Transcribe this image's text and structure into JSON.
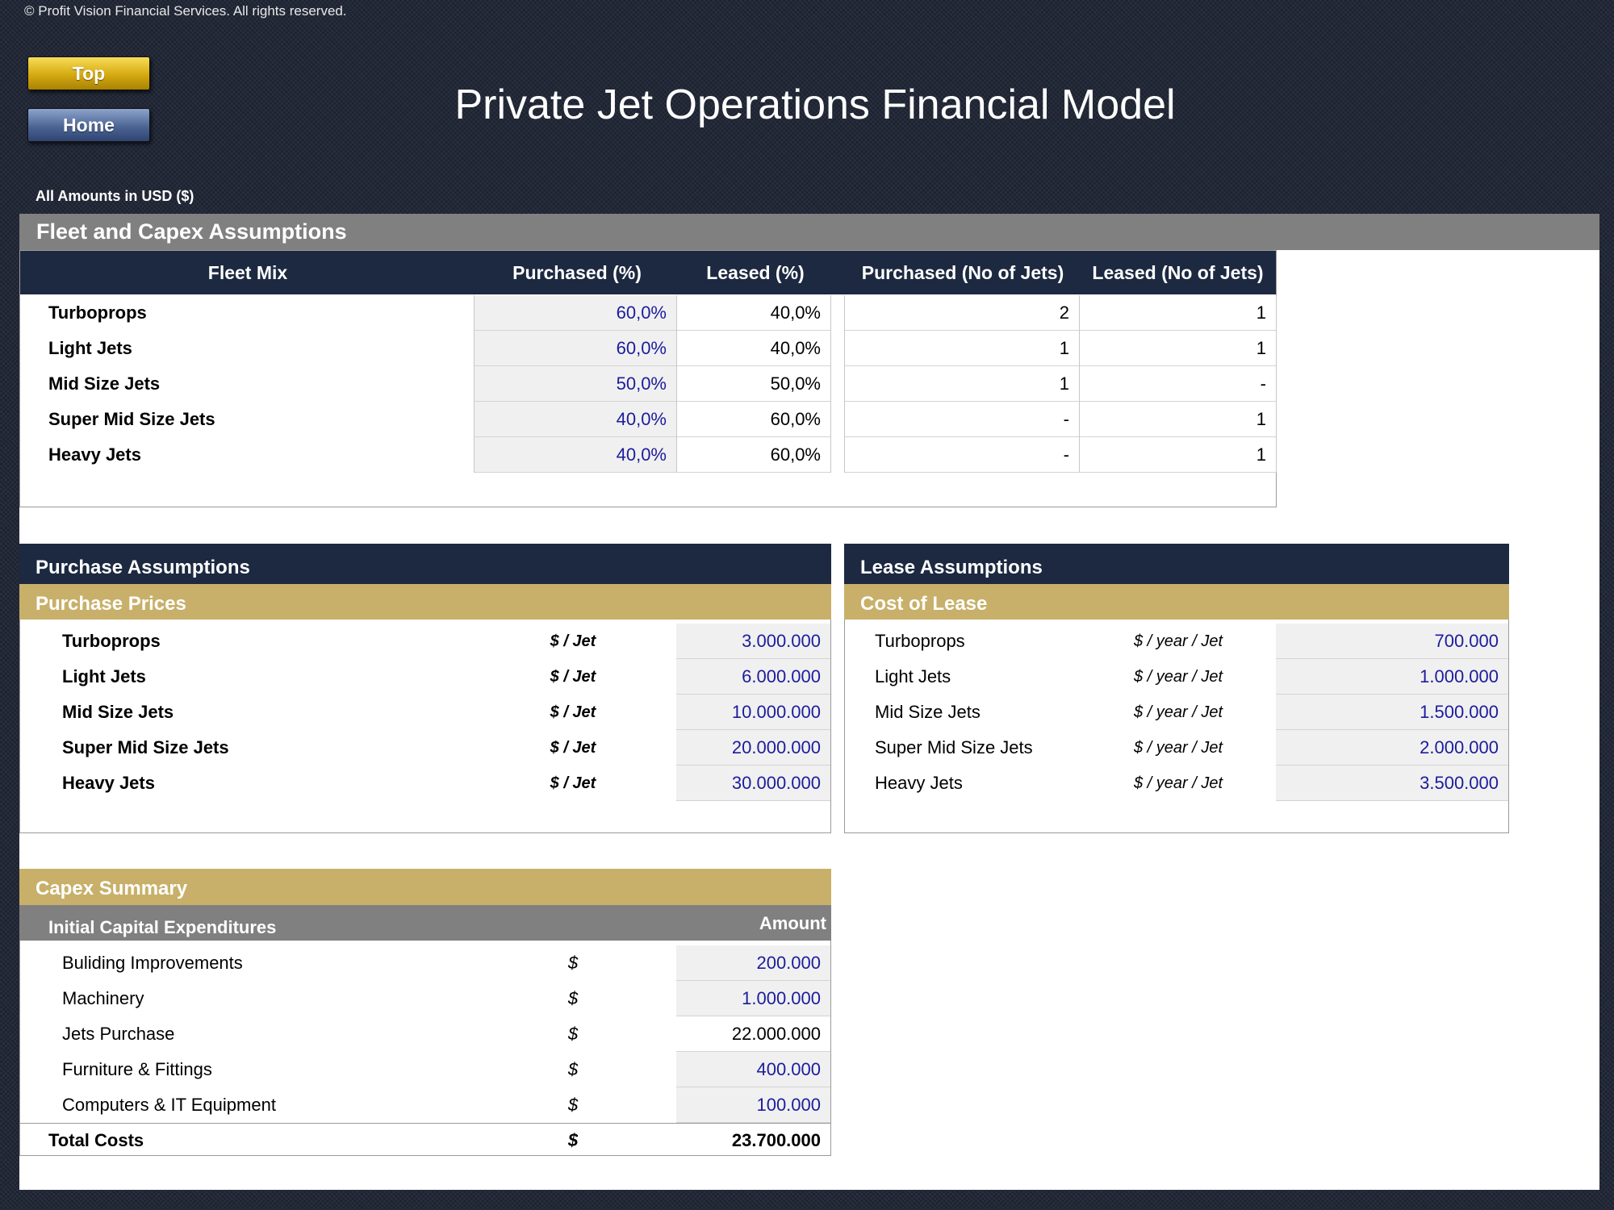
{
  "header": {
    "copyright": "© Profit Vision Financial Services. All rights reserved.",
    "top_button": "Top",
    "home_button": "Home",
    "title": "Private Jet Operations Financial Model",
    "amounts_note": "All Amounts in  USD ($)"
  },
  "fleet": {
    "section_title": "Fleet and Capex Assumptions",
    "columns": [
      "Fleet Mix",
      "Purchased (%)",
      "Leased (%)",
      "Purchased (No of Jets)",
      "Leased (No of Jets)"
    ],
    "rows": [
      {
        "name": "Turboprops",
        "purchased_pct": "60,0%",
        "leased_pct": "40,0%",
        "purchased_no": "2",
        "leased_no": "1"
      },
      {
        "name": "Light Jets",
        "purchased_pct": "60,0%",
        "leased_pct": "40,0%",
        "purchased_no": "1",
        "leased_no": "1"
      },
      {
        "name": "Mid Size Jets",
        "purchased_pct": "50,0%",
        "leased_pct": "50,0%",
        "purchased_no": "1",
        "leased_no": "-"
      },
      {
        "name": "Super Mid Size Jets",
        "purchased_pct": "40,0%",
        "leased_pct": "60,0%",
        "purchased_no": "-",
        "leased_no": "1"
      },
      {
        "name": "Heavy Jets",
        "purchased_pct": "40,0%",
        "leased_pct": "60,0%",
        "purchased_no": "-",
        "leased_no": "1"
      }
    ]
  },
  "purchase": {
    "title": "Purchase Assumptions",
    "subtitle": "Purchase Prices",
    "rows": [
      {
        "name": "Turboprops",
        "unit": "$ / Jet",
        "value": "3.000.000"
      },
      {
        "name": "Light Jets",
        "unit": "$ / Jet",
        "value": "6.000.000"
      },
      {
        "name": "Mid Size Jets",
        "unit": "$ / Jet",
        "value": "10.000.000"
      },
      {
        "name": "Super Mid Size Jets",
        "unit": "$ / Jet",
        "value": "20.000.000"
      },
      {
        "name": "Heavy Jets",
        "unit": "$ / Jet",
        "value": "30.000.000"
      }
    ]
  },
  "lease": {
    "title": "Lease Assumptions",
    "subtitle": "Cost of Lease",
    "rows": [
      {
        "name": "Turboprops",
        "unit": "$ / year / Jet",
        "value": "700.000"
      },
      {
        "name": "Light Jets",
        "unit": "$ / year / Jet",
        "value": "1.000.000"
      },
      {
        "name": "Mid Size Jets",
        "unit": "$ / year / Jet",
        "value": "1.500.000"
      },
      {
        "name": "Super Mid Size Jets",
        "unit": "$ / year / Jet",
        "value": "2.000.000"
      },
      {
        "name": "Heavy Jets",
        "unit": "$ / year / Jet",
        "value": "3.500.000"
      }
    ]
  },
  "capex": {
    "title": "Capex Summary",
    "subheader": "Initial Capital Expenditures",
    "amount_header": "Amount",
    "rows": [
      {
        "name": "Buliding Improvements",
        "unit": "$",
        "value": "200.000"
      },
      {
        "name": "Machinery",
        "unit": "$",
        "value": "1.000.000"
      },
      {
        "name": "Jets Purchase",
        "unit": "$",
        "value": "22.000.000"
      },
      {
        "name": "Furniture & Fittings",
        "unit": "$",
        "value": "400.000"
      },
      {
        "name": "Computers & IT Equipment",
        "unit": "$",
        "value": "100.000"
      }
    ],
    "total": {
      "name": "Total Costs",
      "unit": "$",
      "value": "23.700.000"
    }
  },
  "colors": {
    "navy": "#1c2940",
    "gold": "#c8b06a",
    "grey": "#808080",
    "input_blue": "#1c1c9c"
  }
}
